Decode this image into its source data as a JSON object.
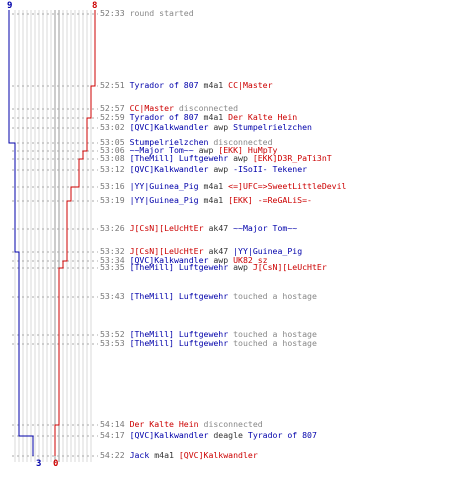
{
  "colors": {
    "blue_team": "#0000aa",
    "red_team": "#cc0000",
    "timestamp": "#777777",
    "system": "#888888"
  },
  "counters": {
    "blue_top": "9",
    "red_top": "8",
    "blue_bottom": "3",
    "red_bottom": "0"
  },
  "events": [
    {
      "time": "52:33",
      "parts": [
        {
          "t": "round started",
          "c": "gray"
        }
      ]
    },
    {
      "time": "52:51",
      "parts": [
        {
          "t": "Tyrador of 807",
          "c": "blue"
        },
        {
          "t": " m4a1 ",
          "c": "dark"
        },
        {
          "t": "CC|Master",
          "c": "red"
        }
      ]
    },
    {
      "time": "52:57",
      "parts": [
        {
          "t": "CC|Master",
          "c": "red"
        },
        {
          "t": " disconnected",
          "c": "gray"
        }
      ]
    },
    {
      "time": "52:59",
      "parts": [
        {
          "t": "Tyrador of 807",
          "c": "blue"
        },
        {
          "t": " m4a1 ",
          "c": "dark"
        },
        {
          "t": "Der Kalte Hein",
          "c": "red"
        }
      ]
    },
    {
      "time": "53:02",
      "parts": [
        {
          "t": "[QVC]Kalkwandler",
          "c": "blue"
        },
        {
          "t": " awp ",
          "c": "dark"
        },
        {
          "t": "Stumpelrielzchen",
          "c": "blue"
        }
      ]
    },
    {
      "time": "53:05",
      "parts": [
        {
          "t": "Stumpelrielzchen",
          "c": "blue"
        },
        {
          "t": " disconnected",
          "c": "gray"
        }
      ]
    },
    {
      "time": "53:06",
      "parts": [
        {
          "t": "~~Major Tom~~",
          "c": "blue"
        },
        {
          "t": " awp ",
          "c": "dark"
        },
        {
          "t": "[EKK] HuMpTy",
          "c": "red"
        }
      ]
    },
    {
      "time": "53:08",
      "parts": [
        {
          "t": "[TheMill] Luftgewehr",
          "c": "blue"
        },
        {
          "t": " awp ",
          "c": "dark"
        },
        {
          "t": "[EKK]D3R_PaTi3nT",
          "c": "red"
        }
      ]
    },
    {
      "time": "53:12",
      "parts": [
        {
          "t": "[QVC]Kalkwandler",
          "c": "blue"
        },
        {
          "t": " awp ",
          "c": "dark"
        },
        {
          "t": "-ISoII- Tekener",
          "c": "blue"
        }
      ]
    },
    {
      "time": "53:16",
      "parts": [
        {
          "t": "|YY|Guinea_Pig",
          "c": "blue"
        },
        {
          "t": " m4a1 ",
          "c": "dark"
        },
        {
          "t": "<=]UFC=>SweetLittleDevil",
          "c": "red"
        }
      ]
    },
    {
      "time": "53:19",
      "parts": [
        {
          "t": "|YY|Guinea_Pig",
          "c": "blue"
        },
        {
          "t": " m4a1 ",
          "c": "dark"
        },
        {
          "t": "[EKK] -=ReGALiS=-",
          "c": "red"
        }
      ]
    },
    {
      "time": "53:26",
      "parts": [
        {
          "t": "J[CsN][LeUcHtEr",
          "c": "red"
        },
        {
          "t": " ak47 ",
          "c": "dark"
        },
        {
          "t": "~~Major Tom~~",
          "c": "blue"
        }
      ]
    },
    {
      "time": "53:32",
      "parts": [
        {
          "t": "J[CsN][LeUcHtEr",
          "c": "red"
        },
        {
          "t": " ak47 ",
          "c": "dark"
        },
        {
          "t": "|YY|Guinea_Pig",
          "c": "blue"
        }
      ]
    },
    {
      "time": "53:34",
      "parts": [
        {
          "t": "[QVC]Kalkwandler",
          "c": "blue"
        },
        {
          "t": " awp ",
          "c": "dark"
        },
        {
          "t": "UK82_sz",
          "c": "red"
        }
      ]
    },
    {
      "time": "53:35",
      "parts": [
        {
          "t": "[TheMill] Luftgewehr",
          "c": "blue"
        },
        {
          "t": " awp ",
          "c": "dark"
        },
        {
          "t": "J[CsN][LeUcHtEr",
          "c": "red"
        }
      ]
    },
    {
      "time": "53:43",
      "parts": [
        {
          "t": "[TheMill] Luftgewehr",
          "c": "blue"
        },
        {
          "t": " touched a hostage",
          "c": "gray"
        }
      ]
    },
    {
      "time": "53:52",
      "parts": [
        {
          "t": "[TheMill] Luftgewehr",
          "c": "blue"
        },
        {
          "t": " touched a hostage",
          "c": "gray"
        }
      ]
    },
    {
      "time": "53:53",
      "parts": [
        {
          "t": "[TheMill] Luftgewehr",
          "c": "blue"
        },
        {
          "t": " touched a hostage",
          "c": "gray"
        }
      ]
    },
    {
      "time": "54:14",
      "parts": [
        {
          "t": "Der Kalte Hein",
          "c": "red"
        },
        {
          "t": " disconnected",
          "c": "gray"
        }
      ]
    },
    {
      "time": "54:17",
      "parts": [
        {
          "t": "[QVC]Kalkwandler",
          "c": "blue"
        },
        {
          "t": " deagle ",
          "c": "dark"
        },
        {
          "t": "Tyrador of 807",
          "c": "blue"
        }
      ]
    },
    {
      "time": "54:22",
      "parts": [
        {
          "t": "Jack",
          "c": "blue"
        },
        {
          "t": " m4a1 ",
          "c": "dark"
        },
        {
          "t": "[QVC]Kalkwandler",
          "c": "red"
        }
      ]
    }
  ]
}
